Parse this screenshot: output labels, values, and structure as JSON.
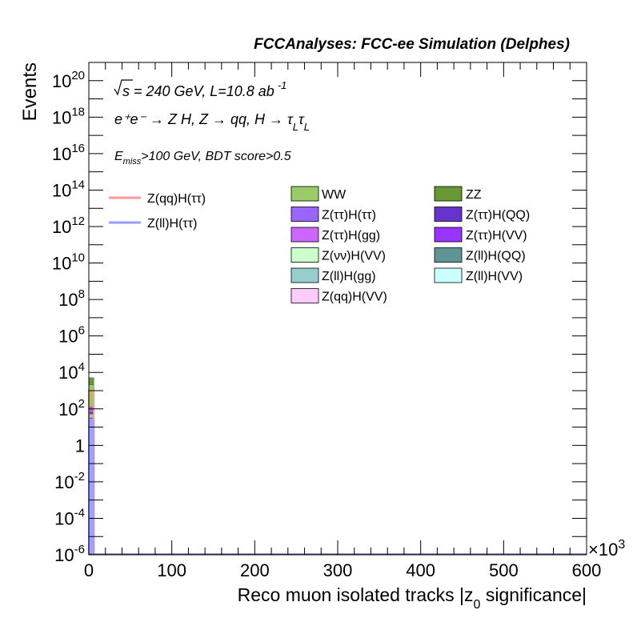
{
  "header": {
    "title": "FCCAnalyses: FCC-ee Simulation (Delphes)"
  },
  "annotations": {
    "line1_sqrt": "s",
    "line1_rest": " = 240 GeV, L=10.8 ab",
    "line1_exp": "-1",
    "line2": "e⁺e⁻ → Z H, Z → qq, H → τ",
    "line2_sub1": "L",
    "line2_tau": "τ",
    "line2_sub2": "L",
    "line3_e": "E",
    "line3_sub": "miss",
    "line3_rest": ">100 GeV, BDT score>0.5"
  },
  "chart_data": {
    "type": "bar",
    "title": "FCCAnalyses: FCC-ee Simulation (Delphes)",
    "xlabel": "Reco muon isolated tracks |z",
    "xlabel_sub": "0",
    "xlabel_end": " significance|",
    "ylabel": "Events",
    "x_multiplier": "×10",
    "x_multiplier_exp": "3",
    "xlim": [
      0,
      600
    ],
    "ylim": [
      1e-06,
      1e+21
    ],
    "yscale": "log",
    "x_ticks": [
      "0",
      "100",
      "200",
      "300",
      "400",
      "500",
      "600"
    ],
    "y_ticks": [
      {
        "base": "10",
        "exp": "-6",
        "v": 1e-06
      },
      {
        "base": "10",
        "exp": "-4",
        "v": 0.0001
      },
      {
        "base": "10",
        "exp": "-2",
        "v": 0.01
      },
      {
        "base": "1",
        "exp": "",
        "v": 1
      },
      {
        "base": "10",
        "exp": "2",
        "v": 100.0
      },
      {
        "base": "10",
        "exp": "4",
        "v": 10000.0
      },
      {
        "base": "10",
        "exp": "6",
        "v": 1000000.0
      },
      {
        "base": "10",
        "exp": "8",
        "v": 100000000.0
      },
      {
        "base": "10",
        "exp": "10",
        "v": 10000000000.0
      },
      {
        "base": "10",
        "exp": "12",
        "v": 1000000000000.0
      },
      {
        "base": "10",
        "exp": "14",
        "v": 100000000000000.0
      },
      {
        "base": "10",
        "exp": "16",
        "v": 1e+16
      },
      {
        "base": "10",
        "exp": "18",
        "v": 1e+18
      },
      {
        "base": "10",
        "exp": "20",
        "v": 1e+20
      }
    ],
    "stack_bin": {
      "x_low": 0,
      "x_high": 6
    },
    "stack": [
      {
        "name": "Z(ll)H(ττ)",
        "color": "#a3a3ff",
        "value": 30
      },
      {
        "name": "Z(qq)H(VV)",
        "color": "#ffccff",
        "value": 2
      },
      {
        "name": "Z(ll)H(gg)",
        "color": "#99cccc",
        "value": 20
      },
      {
        "name": "Z(ll)H(QQ)",
        "color": "#5f9595",
        "value": 3
      },
      {
        "name": "Z(ττ)H(QQ)",
        "color": "#6633cc",
        "value": 10
      },
      {
        "name": "Z(ττ)H(ττ)",
        "color": "#9966ff",
        "value": 60
      },
      {
        "name": "WW",
        "color": "#99cc66",
        "value": 2000
      },
      {
        "name": "ZZ",
        "color": "#669933",
        "value": 3000
      }
    ],
    "signal_lines": [
      {
        "name": "Z(qq)H(ττ)",
        "color": "#ff9999",
        "value": 1000
      },
      {
        "name": "Z(ll)H(ττ)",
        "color": "#9999ff",
        "value": 20
      }
    ],
    "legend_lines": [
      {
        "label": "Z(qq)H(ττ)",
        "color": "#ff9999"
      },
      {
        "label": "Z(ll)H(ττ)",
        "color": "#9999ff"
      }
    ],
    "legend_col1": [
      {
        "label": "WW",
        "color": "#99cc66"
      },
      {
        "label": "Z(ττ)H(ττ)",
        "color": "#9966ff"
      },
      {
        "label": "Z(ττ)H(gg)",
        "color": "#cc66ff"
      },
      {
        "label": "Z(νν)H(VV)",
        "color": "#ccffcc"
      },
      {
        "label": "Z(ll)H(gg)",
        "color": "#99cccc"
      },
      {
        "label": "Z(qq)H(VV)",
        "color": "#ffccff"
      }
    ],
    "legend_col2": [
      {
        "label": "ZZ",
        "color": "#669933"
      },
      {
        "label": "Z(ττ)H(QQ)",
        "color": "#6633cc"
      },
      {
        "label": "Z(ττ)H(VV)",
        "color": "#9933ff"
      },
      {
        "label": "Z(ll)H(QQ)",
        "color": "#5f9595"
      },
      {
        "label": "Z(ll)H(VV)",
        "color": "#ccffff"
      }
    ]
  }
}
